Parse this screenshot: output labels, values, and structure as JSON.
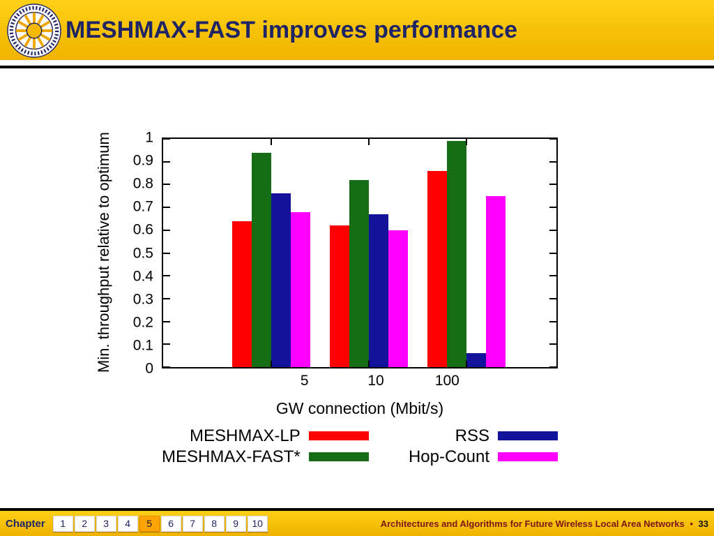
{
  "header": {
    "title": "MESHMAX-FAST improves performance",
    "logo_alt": "Karlstads Universitet"
  },
  "footer": {
    "chapter_label": "Chapter",
    "pages": [
      "1",
      "2",
      "3",
      "4",
      "5",
      "6",
      "7",
      "8",
      "9",
      "10"
    ],
    "active_page": "5",
    "credit": "Architectures and Algorithms for Future Wireless Local Area Networks",
    "separator": "•",
    "slide_number": "33"
  },
  "chart_data": {
    "type": "bar",
    "title": "",
    "xlabel": "GW connection (Mbit/s)",
    "ylabel": "Min. throughput relative to optimum",
    "categories": [
      "5",
      "10",
      "100"
    ],
    "ylim": [
      0,
      1
    ],
    "ytick_labels": [
      "0",
      "0.1",
      "0.2",
      "0.3",
      "0.4",
      "0.5",
      "0.6",
      "0.7",
      "0.8",
      "0.9",
      "1"
    ],
    "grid": false,
    "legend_position": "bottom",
    "series": [
      {
        "name": "MESHMAX-LP",
        "color": "#ff0000",
        "values": [
          0.64,
          0.62,
          0.86
        ]
      },
      {
        "name": "MESHMAX-FAST*",
        "color": "#156e15",
        "values": [
          0.94,
          0.82,
          0.99
        ]
      },
      {
        "name": "RSS",
        "color": "#12129a",
        "values": [
          0.76,
          0.67,
          0.06
        ]
      },
      {
        "name": "Hop-Count",
        "color": "#ff00ff",
        "values": [
          0.68,
          0.6,
          0.75
        ]
      }
    ]
  }
}
